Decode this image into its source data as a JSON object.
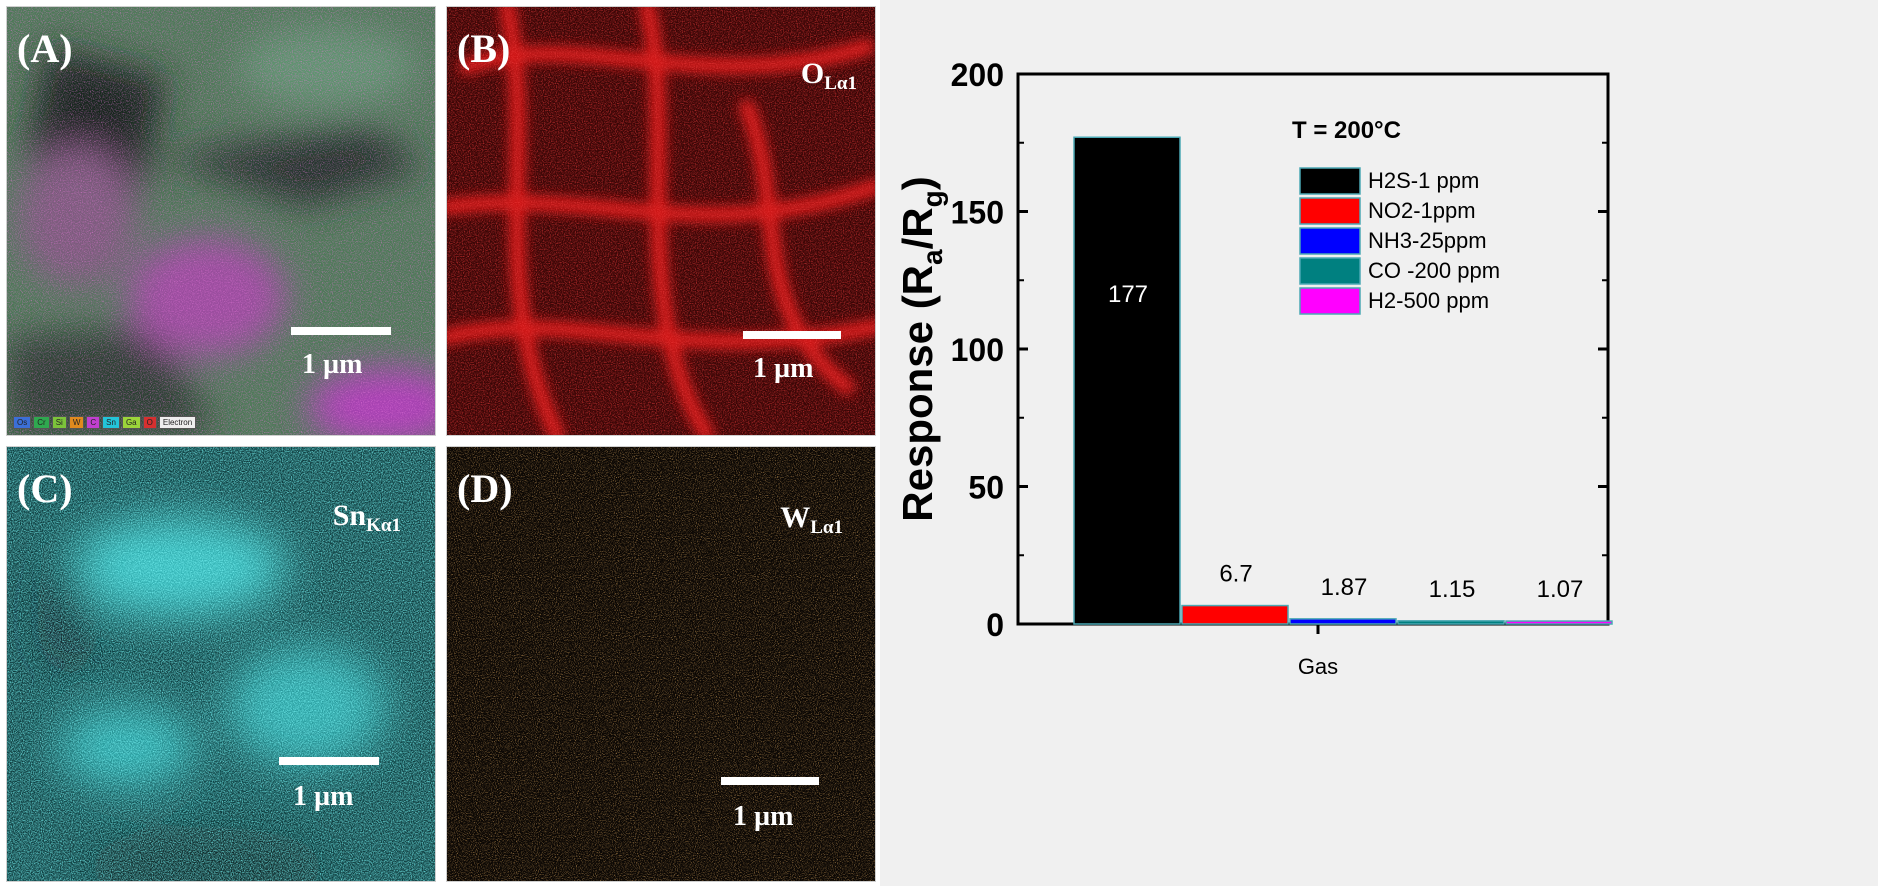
{
  "panels": {
    "a": {
      "letter": "(A)",
      "scale": "1 µm",
      "legend": [
        "Os",
        "Cr",
        "Si",
        "W",
        "C",
        "Sn",
        "Ga",
        "O",
        "Electron"
      ],
      "legend_colors": [
        "#3b6fd6",
        "#2fa84f",
        "#7cc33a",
        "#e08a1e",
        "#c03fd0",
        "#23c4d8",
        "#9bd53a",
        "#d63030",
        "#eeeeee"
      ]
    },
    "b": {
      "letter": "(B)",
      "element": "O",
      "sub": "Lα1",
      "scale": "1 µm"
    },
    "c": {
      "letter": "(C)",
      "element": "Sn",
      "sub": "Kα1",
      "scale": "1 µm"
    },
    "d": {
      "letter": "(D)",
      "element": "W",
      "sub": "Lα1",
      "scale": "1 µm"
    }
  },
  "chart_data": {
    "type": "bar",
    "title": "",
    "annotation": "T = 200°C",
    "xlabel": "Gas",
    "ylabel": "Response (Ra/Rg)",
    "ylim": [
      0,
      200
    ],
    "yticks": [
      0,
      50,
      100,
      150,
      200
    ],
    "grid": false,
    "legend_position": "top-right",
    "series": [
      {
        "name": "H2S-1 ppm",
        "value": 177,
        "label": "177",
        "color": "#000000"
      },
      {
        "name": "NO2-1ppm",
        "value": 6.7,
        "label": "6.7",
        "color": "#ff0000"
      },
      {
        "name": "NH3-25ppm",
        "value": 1.87,
        "label": "1.87",
        "color": "#0000ff"
      },
      {
        "name": "CO -200 ppm",
        "value": 1.15,
        "label": "1.15",
        "color": "#008080"
      },
      {
        "name": "H2-500 ppm",
        "value": 1.07,
        "label": "1.07",
        "color": "#ff00ff"
      }
    ]
  }
}
